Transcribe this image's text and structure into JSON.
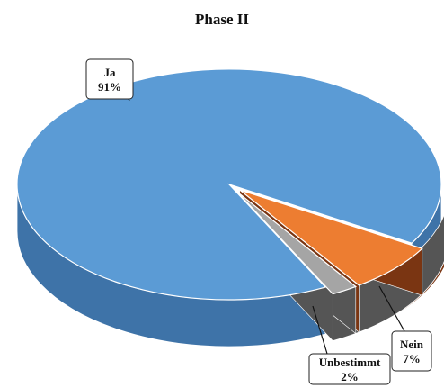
{
  "chart_data": {
    "type": "pie",
    "title": "Phase II",
    "slices": [
      {
        "label": "Ja",
        "value": 91,
        "value_label": "91%",
        "color": "#5B9BD5",
        "side_color": "#3E73A8"
      },
      {
        "label": "Nein",
        "value": 7,
        "value_label": "7%",
        "color": "#ED7D31",
        "side_color": "#7A3512"
      },
      {
        "label": "Unbestimmt",
        "value": 2,
        "value_label": "2%",
        "color": "#A5A5A5",
        "side_color": "#555555"
      }
    ],
    "style": "3d-exploded"
  }
}
